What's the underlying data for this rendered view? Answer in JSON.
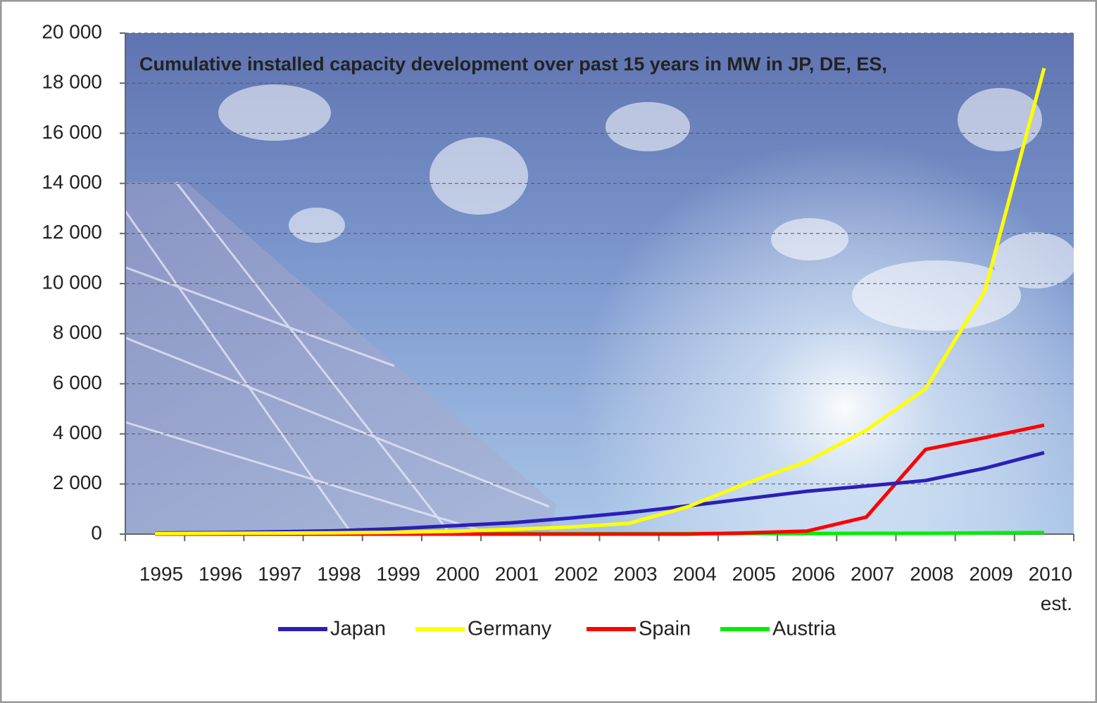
{
  "chart_data": {
    "type": "line",
    "title": "Cumulative installed capacity development over past 15 years in MW in JP, DE, ES,",
    "categories": [
      "1995",
      "1996",
      "1997",
      "1998",
      "1999",
      "2000",
      "2001",
      "2002",
      "2003",
      "2004",
      "2005",
      "2006",
      "2007",
      "2008",
      "2009",
      "2010\nest."
    ],
    "series": [
      {
        "name": "Japan",
        "color": "#2b1fb8",
        "values": [
          40,
          60,
          90,
          130,
          210,
          330,
          450,
          640,
          860,
          1130,
          1420,
          1710,
          1920,
          2140,
          2630,
          3250
        ]
      },
      {
        "name": "Germany",
        "color": "#ffff00",
        "values": [
          20,
          30,
          40,
          50,
          70,
          110,
          190,
          280,
          430,
          1100,
          2050,
          2900,
          4150,
          5800,
          9700,
          18600
        ]
      },
      {
        "name": "Spain",
        "color": "#ff0000",
        "values": [
          0,
          0,
          0,
          0,
          0,
          0,
          0,
          0,
          0,
          0,
          50,
          120,
          680,
          3380,
          3850,
          4350
        ]
      },
      {
        "name": "Austria",
        "color": "#00ee00",
        "values": [
          20,
          20,
          20,
          20,
          20,
          20,
          20,
          20,
          20,
          20,
          20,
          20,
          30,
          30,
          50,
          60
        ]
      }
    ],
    "ylim": [
      0,
      20000
    ],
    "yticks": [
      0,
      {
        "value": 2000,
        "label": "2 000"
      },
      {
        "value": 4000,
        "label": "4 000"
      },
      {
        "value": 6000,
        "label": "6 000"
      },
      {
        "value": 8000,
        "label": "8 000"
      },
      {
        "value": 10000,
        "label": "10 000"
      },
      {
        "value": 12000,
        "label": "12 000"
      },
      {
        "value": 14000,
        "label": "14 000"
      },
      {
        "value": 16000,
        "label": "16 000"
      },
      {
        "value": 18000,
        "label": "18 000"
      },
      {
        "value": 20000,
        "label": "20 000"
      }
    ],
    "grid": true,
    "legend": "bottom"
  }
}
